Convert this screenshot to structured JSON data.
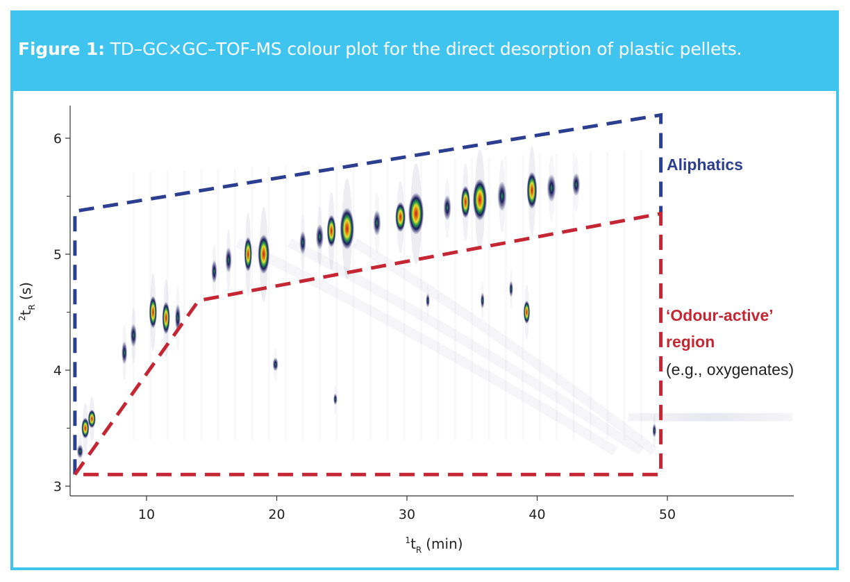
{
  "figure": {
    "label": "Figure 1:",
    "caption": "TD–GC×GC–TOF-MS colour plot for the direct desorption of plastic pellets."
  },
  "chart_data": {
    "type": "heatmap",
    "title": "TD–GC×GC–TOF-MS colour plot for the direct desorption of plastic pellets.",
    "xlabel": {
      "superscript": "1",
      "main": "t",
      "subscript": "R",
      "unit": "(min)"
    },
    "ylabel": {
      "superscript": "2",
      "main": "t",
      "subscript": "R",
      "unit": "(s)"
    },
    "xlim": [
      4,
      60
    ],
    "ylim": [
      2.95,
      6.3
    ],
    "xticks": [
      {
        "value": 10,
        "label": "10"
      },
      {
        "value": 20,
        "label": "20"
      },
      {
        "value": 30,
        "label": "30"
      },
      {
        "value": 40,
        "label": "40"
      },
      {
        "value": 50,
        "label": "50"
      }
    ],
    "yticks": [
      {
        "value": 3,
        "label": "3"
      },
      {
        "value": 4,
        "label": "4"
      },
      {
        "value": 5,
        "label": "5"
      },
      {
        "value": 6,
        "label": "6"
      }
    ],
    "minor_yticks": [
      3.5,
      4.5,
      5.5
    ],
    "peaks": [
      {
        "x": 4.9,
        "y": 3.3,
        "w": 0.25,
        "h": 0.06,
        "i": 0.7
      },
      {
        "x": 5.3,
        "y": 3.5,
        "w": 0.3,
        "h": 0.09,
        "i": 0.9
      },
      {
        "x": 5.8,
        "y": 3.58,
        "w": 0.3,
        "h": 0.08,
        "i": 0.85
      },
      {
        "x": 8.3,
        "y": 4.15,
        "w": 0.22,
        "h": 0.1,
        "i": 0.6
      },
      {
        "x": 9.0,
        "y": 4.3,
        "w": 0.25,
        "h": 0.1,
        "i": 0.7
      },
      {
        "x": 10.5,
        "y": 4.5,
        "w": 0.3,
        "h": 0.14,
        "i": 0.95
      },
      {
        "x": 11.5,
        "y": 4.45,
        "w": 0.3,
        "h": 0.14,
        "i": 0.9
      },
      {
        "x": 12.4,
        "y": 4.45,
        "w": 0.22,
        "h": 0.12,
        "i": 0.5
      },
      {
        "x": 15.2,
        "y": 4.85,
        "w": 0.22,
        "h": 0.1,
        "i": 0.6
      },
      {
        "x": 16.3,
        "y": 4.95,
        "w": 0.25,
        "h": 0.11,
        "i": 0.7
      },
      {
        "x": 17.8,
        "y": 5.0,
        "w": 0.3,
        "h": 0.15,
        "i": 0.95
      },
      {
        "x": 19.0,
        "y": 5.0,
        "w": 0.45,
        "h": 0.17,
        "i": 1.0
      },
      {
        "x": 19.9,
        "y": 4.05,
        "w": 0.22,
        "h": 0.06,
        "i": 0.45
      },
      {
        "x": 22.0,
        "y": 5.1,
        "w": 0.25,
        "h": 0.1,
        "i": 0.5
      },
      {
        "x": 23.3,
        "y": 5.15,
        "w": 0.3,
        "h": 0.11,
        "i": 0.6
      },
      {
        "x": 24.2,
        "y": 5.2,
        "w": 0.35,
        "h": 0.14,
        "i": 0.85
      },
      {
        "x": 25.4,
        "y": 5.22,
        "w": 0.55,
        "h": 0.18,
        "i": 1.0
      },
      {
        "x": 24.5,
        "y": 3.75,
        "w": 0.15,
        "h": 0.05,
        "i": 0.45
      },
      {
        "x": 27.7,
        "y": 5.27,
        "w": 0.3,
        "h": 0.11,
        "i": 0.5
      },
      {
        "x": 29.5,
        "y": 5.32,
        "w": 0.4,
        "h": 0.13,
        "i": 0.8
      },
      {
        "x": 30.7,
        "y": 5.35,
        "w": 0.6,
        "h": 0.18,
        "i": 1.0
      },
      {
        "x": 31.6,
        "y": 4.6,
        "w": 0.15,
        "h": 0.06,
        "i": 0.4
      },
      {
        "x": 33.1,
        "y": 5.4,
        "w": 0.3,
        "h": 0.11,
        "i": 0.5
      },
      {
        "x": 34.5,
        "y": 5.45,
        "w": 0.35,
        "h": 0.14,
        "i": 0.8
      },
      {
        "x": 35.6,
        "y": 5.47,
        "w": 0.55,
        "h": 0.18,
        "i": 1.0
      },
      {
        "x": 35.8,
        "y": 4.6,
        "w": 0.15,
        "h": 0.07,
        "i": 0.55
      },
      {
        "x": 37.3,
        "y": 5.5,
        "w": 0.35,
        "h": 0.13,
        "i": 0.6
      },
      {
        "x": 38.0,
        "y": 4.7,
        "w": 0.15,
        "h": 0.07,
        "i": 0.6
      },
      {
        "x": 39.2,
        "y": 4.5,
        "w": 0.25,
        "h": 0.1,
        "i": 0.75
      },
      {
        "x": 39.6,
        "y": 5.55,
        "w": 0.4,
        "h": 0.16,
        "i": 0.95
      },
      {
        "x": 41.1,
        "y": 5.57,
        "w": 0.35,
        "h": 0.12,
        "i": 0.5
      },
      {
        "x": 43.0,
        "y": 5.6,
        "w": 0.3,
        "h": 0.1,
        "i": 0.45
      },
      {
        "x": 49.0,
        "y": 3.48,
        "w": 0.15,
        "h": 0.06,
        "i": 0.6
      }
    ],
    "regions": [
      {
        "name": "Aliphatics",
        "color": "#2c3e8f",
        "points": [
          [
            4.5,
            3.1
          ],
          [
            4.5,
            5.37
          ],
          [
            49.5,
            6.2
          ],
          [
            49.5,
            5.35
          ]
        ]
      },
      {
        "name": "'Odour-active' region",
        "color": "#c42633",
        "points": [
          [
            4.5,
            3.1
          ],
          [
            14.0,
            4.6
          ],
          [
            49.5,
            5.35
          ],
          [
            49.5,
            3.1
          ],
          [
            4.5,
            3.1
          ]
        ]
      }
    ],
    "annotations": [
      {
        "text": "Aliphatics",
        "color": "#2c3e8f",
        "bold": true
      },
      {
        "text": "‘Odour-active’",
        "color": "#c42633",
        "bold": true
      },
      {
        "text": "region",
        "color": "#c42633",
        "bold": true
      },
      {
        "text": "(e.g., oxygenates)",
        "color": "#222222",
        "bold": false
      }
    ]
  }
}
